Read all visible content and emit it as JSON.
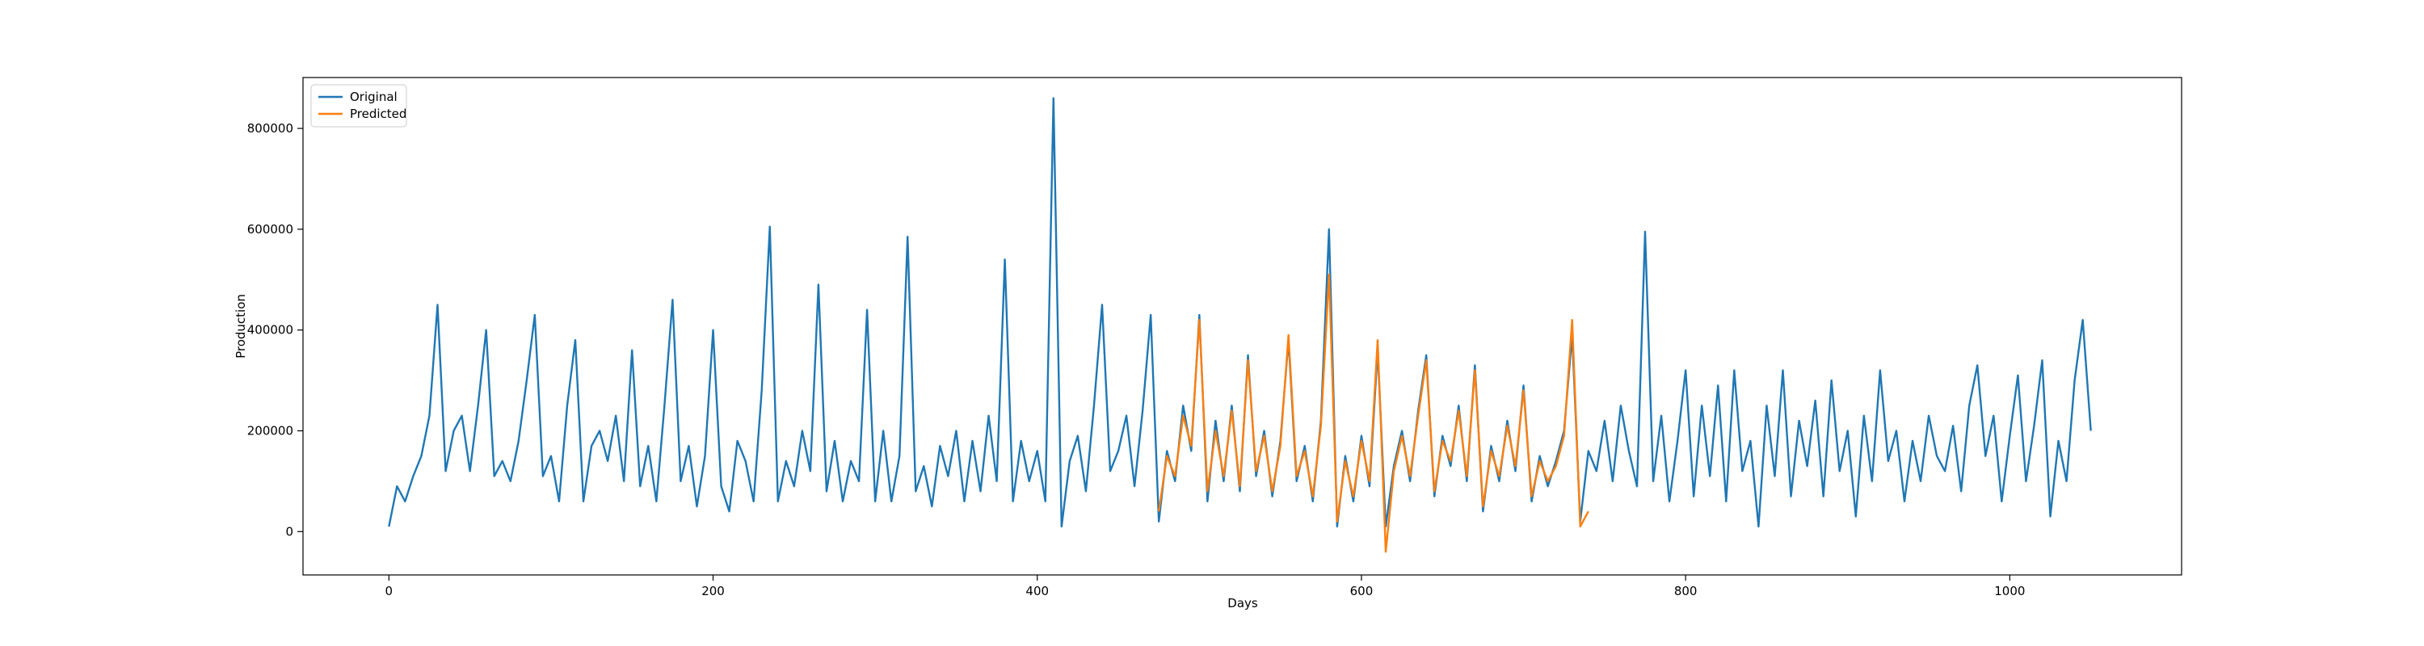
{
  "chart_data": {
    "type": "line",
    "xlabel": "Days",
    "ylabel": "Production",
    "xlim": [
      -53,
      1106
    ],
    "ylim": [
      -86000,
      901000
    ],
    "xticks": [
      0,
      200,
      400,
      600,
      800,
      1000
    ],
    "yticks": [
      0,
      200000,
      400000,
      600000,
      800000
    ],
    "legend": "upper left",
    "grid": false,
    "series": [
      {
        "name": "Original",
        "color": "#1f77b4",
        "x": [
          0,
          5,
          10,
          15,
          20,
          25,
          30,
          35,
          40,
          45,
          50,
          55,
          60,
          65,
          70,
          75,
          80,
          85,
          90,
          95,
          100,
          105,
          110,
          115,
          120,
          125,
          130,
          135,
          140,
          145,
          150,
          155,
          160,
          165,
          170,
          175,
          180,
          185,
          190,
          195,
          200,
          205,
          210,
          215,
          220,
          225,
          230,
          235,
          240,
          245,
          250,
          255,
          260,
          265,
          270,
          275,
          280,
          285,
          290,
          295,
          300,
          305,
          310,
          315,
          320,
          325,
          330,
          335,
          340,
          345,
          350,
          355,
          360,
          365,
          370,
          375,
          380,
          385,
          390,
          395,
          400,
          405,
          410,
          415,
          420,
          425,
          430,
          435,
          440,
          445,
          450,
          455,
          460,
          465,
          470,
          475,
          480,
          485,
          490,
          495,
          500,
          505,
          510,
          515,
          520,
          525,
          530,
          535,
          540,
          545,
          550,
          555,
          560,
          565,
          570,
          575,
          580,
          585,
          590,
          595,
          600,
          605,
          610,
          615,
          620,
          625,
          630,
          635,
          640,
          645,
          650,
          655,
          660,
          665,
          670,
          675,
          680,
          685,
          690,
          695,
          700,
          705,
          710,
          715,
          720,
          725,
          730,
          735,
          740,
          745,
          750,
          755,
          760,
          765,
          770,
          775,
          780,
          785,
          790,
          795,
          800,
          805,
          810,
          815,
          820,
          825,
          830,
          835,
          840,
          845,
          850,
          855,
          860,
          865,
          870,
          875,
          880,
          885,
          890,
          895,
          900,
          905,
          910,
          915,
          920,
          925,
          930,
          935,
          940,
          945,
          950,
          955,
          960,
          965,
          970,
          975,
          980,
          985,
          990,
          995,
          1000,
          1005,
          1010,
          1015,
          1020,
          1025,
          1030,
          1035,
          1040,
          1045,
          1050
        ],
        "values": [
          10000,
          90000,
          60000,
          110000,
          150000,
          230000,
          450000,
          120000,
          200000,
          230000,
          120000,
          250000,
          400000,
          110000,
          140000,
          100000,
          180000,
          300000,
          430000,
          110000,
          150000,
          60000,
          250000,
          380000,
          60000,
          170000,
          200000,
          140000,
          230000,
          100000,
          360000,
          90000,
          170000,
          60000,
          250000,
          460000,
          100000,
          170000,
          50000,
          150000,
          400000,
          90000,
          40000,
          180000,
          140000,
          60000,
          280000,
          605000,
          60000,
          140000,
          90000,
          200000,
          120000,
          490000,
          80000,
          180000,
          60000,
          140000,
          100000,
          440000,
          60000,
          200000,
          60000,
          150000,
          585000,
          80000,
          130000,
          50000,
          170000,
          110000,
          200000,
          60000,
          180000,
          80000,
          230000,
          100000,
          540000,
          60000,
          180000,
          100000,
          160000,
          60000,
          860000,
          10000,
          140000,
          190000,
          80000,
          250000,
          450000,
          120000,
          160000,
          230000,
          90000,
          240000,
          430000,
          20000,
          160000,
          100000,
          250000,
          160000,
          430000,
          60000,
          220000,
          100000,
          250000,
          80000,
          350000,
          110000,
          200000,
          70000,
          180000,
          380000,
          100000,
          170000,
          60000,
          220000,
          600000,
          10000,
          150000,
          60000,
          190000,
          90000,
          360000,
          10000,
          130000,
          200000,
          100000,
          240000,
          350000,
          70000,
          190000,
          130000,
          250000,
          100000,
          330000,
          40000,
          170000,
          100000,
          220000,
          120000,
          290000,
          60000,
          150000,
          90000,
          140000,
          200000,
          390000,
          20000,
          160000,
          120000,
          220000,
          100000,
          250000,
          160000,
          90000,
          595000,
          100000,
          230000,
          60000,
          180000,
          320000,
          70000,
          250000,
          110000,
          290000,
          60000,
          320000,
          120000,
          180000,
          10000,
          250000,
          110000,
          320000,
          70000,
          220000,
          130000,
          260000,
          70000,
          300000,
          120000,
          200000,
          30000,
          230000,
          100000,
          320000,
          140000,
          200000,
          60000,
          180000,
          100000,
          230000,
          150000,
          120000,
          210000,
          80000,
          250000,
          330000,
          150000,
          230000,
          60000,
          190000,
          310000,
          100000,
          210000,
          340000,
          30000,
          180000,
          100000,
          300000,
          420000,
          200000
        ]
      },
      {
        "name": "Predicted",
        "color": "#ff7f0e",
        "x": [
          475,
          480,
          485,
          490,
          495,
          500,
          505,
          510,
          515,
          520,
          525,
          530,
          535,
          540,
          545,
          550,
          555,
          560,
          565,
          570,
          575,
          580,
          585,
          590,
          595,
          600,
          605,
          610,
          615,
          620,
          625,
          630,
          635,
          640,
          645,
          650,
          655,
          660,
          665,
          670,
          675,
          680,
          685,
          690,
          695,
          700,
          705,
          710,
          715,
          720,
          725,
          730,
          735,
          740
        ],
        "values": [
          40000,
          150000,
          110000,
          230000,
          170000,
          420000,
          80000,
          200000,
          110000,
          240000,
          90000,
          340000,
          120000,
          190000,
          80000,
          170000,
          390000,
          110000,
          160000,
          70000,
          210000,
          510000,
          20000,
          140000,
          70000,
          180000,
          100000,
          380000,
          -40000,
          120000,
          190000,
          110000,
          230000,
          340000,
          80000,
          180000,
          140000,
          240000,
          110000,
          320000,
          50000,
          160000,
          110000,
          210000,
          130000,
          280000,
          70000,
          140000,
          100000,
          130000,
          190000,
          420000,
          10000,
          40000
        ]
      }
    ]
  }
}
